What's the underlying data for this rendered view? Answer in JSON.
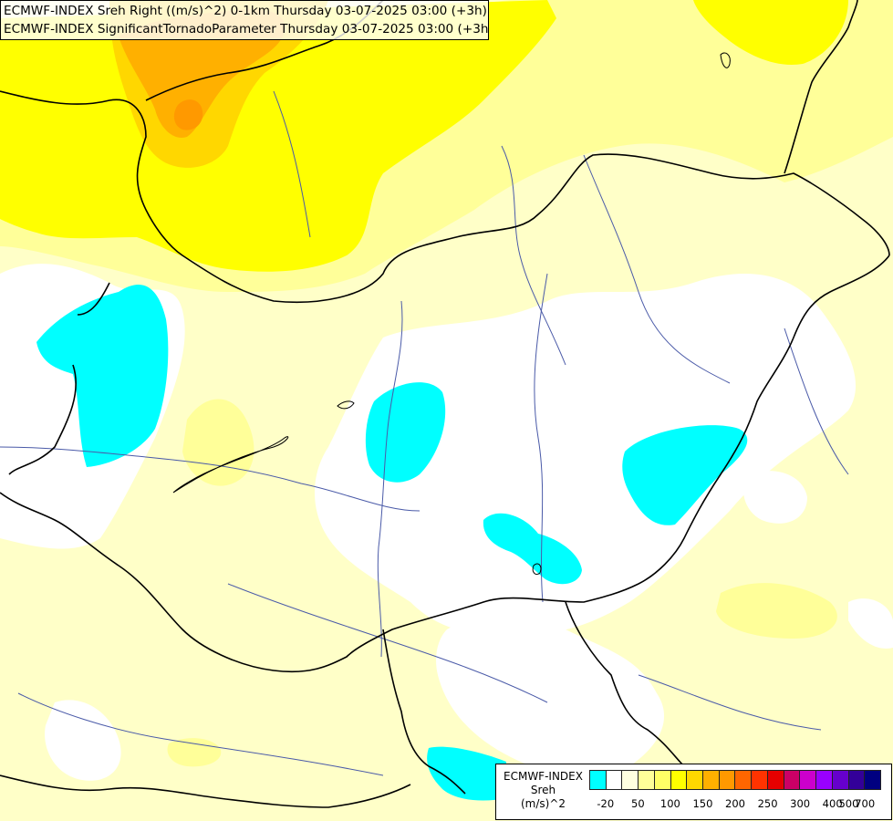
{
  "title_lines": [
    "ECMWF-INDEX Sreh Right ((m/s)^2) 0-1km Thursday 03-07-2025 03:00 (+3h)",
    "ECMWF-INDEX SignificantTornadoParameter Thursday 03-07-2025 03:00 (+3h)"
  ],
  "legend": {
    "name_lines": [
      "ECMWF-INDEX",
      "Sreh",
      "(m/s)^2"
    ],
    "colors": [
      "#00ffff",
      "#ffffff",
      "#ffffe0",
      "#ffff99",
      "#ffff66",
      "#ffff00",
      "#ffd700",
      "#ffb000",
      "#ff9900",
      "#ff6600",
      "#ff3300",
      "#e60000",
      "#cc0066",
      "#cc00cc",
      "#9900ff",
      "#6600cc",
      "#330099",
      "#000080"
    ],
    "tick_labels": [
      "-20",
      "50",
      "100",
      "150",
      "200",
      "250",
      "300",
      "400",
      "500",
      "700"
    ]
  },
  "map_colors": {
    "cyan": "#00ffff",
    "pale_yellow": "#ffffc8",
    "light_yellow": "#ffff99",
    "yellow": "#ffff00",
    "gold": "#ffd700",
    "orange": "#ffa500",
    "dark_orange": "#ff9900",
    "border": "#000000",
    "river": "#4a5aa8"
  }
}
